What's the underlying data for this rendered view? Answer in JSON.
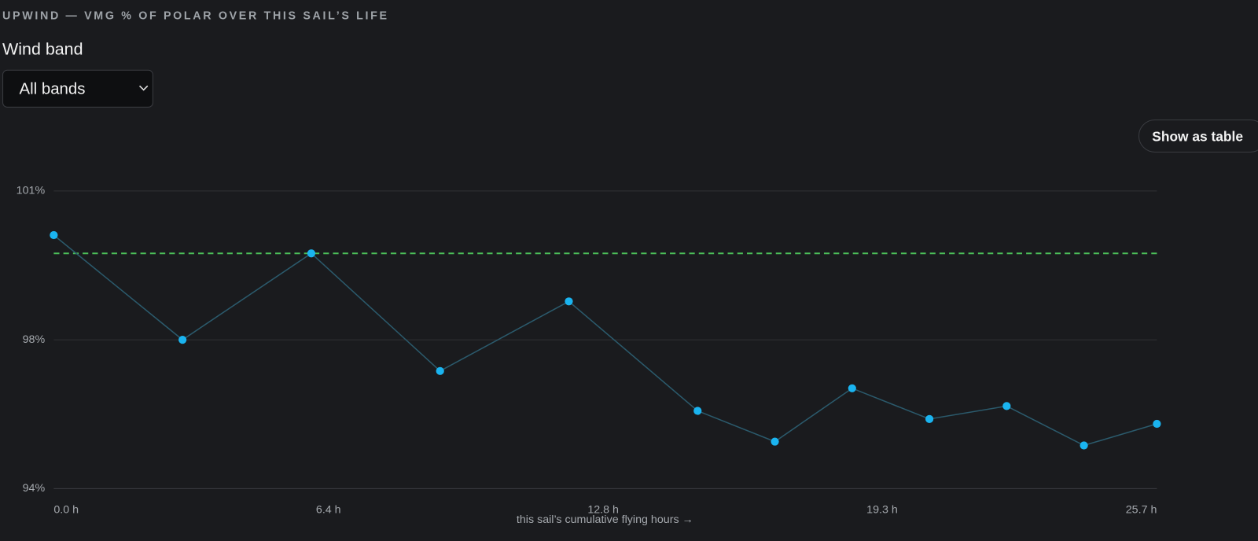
{
  "header": {
    "title": "UPWIND — VMG % OF POLAR OVER THIS SAIL’S LIFE"
  },
  "filter": {
    "label": "Wind band",
    "selected": "All bands"
  },
  "toggle_button": "Show as table",
  "chart_data": {
    "type": "line",
    "x_label": "this sail’s cumulative flying hours →",
    "x": [
      0,
      3.0,
      6.0,
      9.0,
      12.0,
      15.0,
      16.8,
      18.6,
      20.4,
      22.2,
      24.0,
      25.7
    ],
    "values": [
      99.68,
      97.5,
      99.3,
      96.85,
      98.3,
      96.02,
      95.38,
      96.49,
      95.85,
      96.12,
      95.3,
      95.75
    ],
    "color": "#1ab4f0",
    "line_color": "#2b5a6c",
    "reference_line": {
      "value": 99.3,
      "color": "#4cc25a"
    },
    "xlim": [
      0,
      25.7
    ],
    "xticks": [
      {
        "value": 0,
        "label": "0.0 h"
      },
      {
        "value": 6.4,
        "label": "6.4 h"
      },
      {
        "value": 12.8,
        "label": "12.8 h"
      },
      {
        "value": 19.3,
        "label": "19.3 h"
      },
      {
        "value": 25.7,
        "label": "25.7 h"
      }
    ],
    "ylim": [
      94.4,
      100.6
    ],
    "yticks": [
      {
        "value": 94.4,
        "label": "94%"
      },
      {
        "value": 97.5,
        "label": "98%"
      },
      {
        "value": 100.6,
        "label": "101%"
      }
    ],
    "grid": true
  }
}
